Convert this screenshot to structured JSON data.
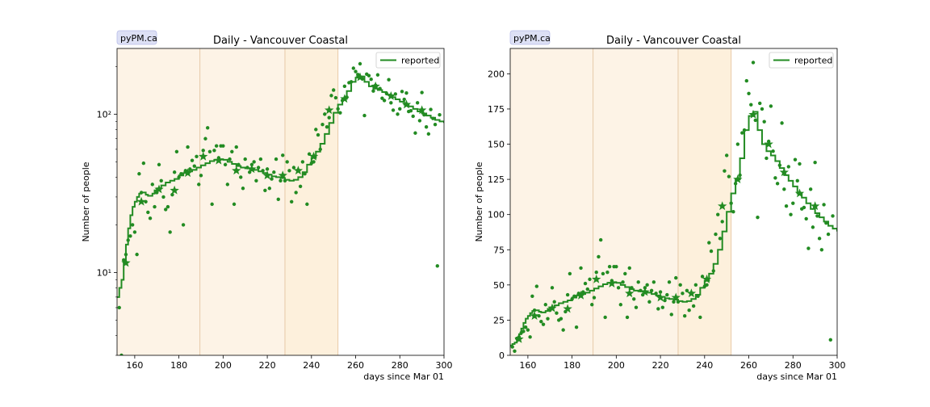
{
  "colors": {
    "series": "#228b22",
    "band_light": "#fdf3e6",
    "band_dark": "#fdf0dc",
    "band_edge": "#e6c9a8",
    "badge_bg": "#dde0f5",
    "badge_border": "#b8bce8"
  },
  "chart_data": [
    {
      "type": "scatter",
      "id": "log",
      "badge": "pyPM.ca",
      "title": "Daily - Vancouver Coastal",
      "xlabel": "days since Mar 01",
      "ylabel": "Number of people",
      "yscale": "log",
      "xlim": [
        152,
        300
      ],
      "ylim": [
        3,
        260
      ],
      "xticks": [
        160,
        180,
        200,
        220,
        240,
        260,
        280,
        300
      ],
      "yticks": [
        10,
        100
      ],
      "ytick_labels": [
        "10¹",
        "10²"
      ],
      "legend": {
        "label": "reported",
        "position": "top-right"
      },
      "bands": [
        [
          152,
          189.5
        ],
        [
          189.5,
          228
        ],
        [
          228,
          252
        ]
      ],
      "model_points": [
        [
          152,
          7
        ],
        [
          153,
          8
        ],
        [
          154,
          9
        ],
        [
          155,
          11.5
        ],
        [
          156,
          15
        ],
        [
          157,
          19
        ],
        [
          158,
          23
        ],
        [
          159,
          26
        ],
        [
          160,
          28
        ],
        [
          161,
          30
        ],
        [
          162,
          31.5
        ],
        [
          163,
          32
        ],
        [
          164,
          32
        ],
        [
          165,
          31
        ],
        [
          166,
          30.5
        ],
        [
          167,
          30.5
        ],
        [
          168,
          31.5
        ],
        [
          169,
          33
        ],
        [
          170,
          34
        ],
        [
          172,
          35.5
        ],
        [
          174,
          37
        ],
        [
          176,
          38
        ],
        [
          178,
          39
        ],
        [
          180,
          41
        ],
        [
          182,
          42.5
        ],
        [
          184,
          43.5
        ],
        [
          186,
          44.5
        ],
        [
          188,
          46
        ],
        [
          190,
          47.5
        ],
        [
          192,
          49
        ],
        [
          194,
          50.5
        ],
        [
          196,
          51.5
        ],
        [
          198,
          52
        ],
        [
          200,
          51.5
        ],
        [
          202,
          50
        ],
        [
          204,
          48.5
        ],
        [
          206,
          47
        ],
        [
          208,
          46
        ],
        [
          210,
          45.5
        ],
        [
          212,
          45
        ],
        [
          214,
          44.5
        ],
        [
          216,
          43.5
        ],
        [
          218,
          42.5
        ],
        [
          220,
          41.5
        ],
        [
          222,
          40.5
        ],
        [
          224,
          40
        ],
        [
          226,
          39.5
        ],
        [
          228,
          38.5
        ],
        [
          230,
          38
        ],
        [
          232,
          38.5
        ],
        [
          234,
          40
        ],
        [
          236,
          43
        ],
        [
          238,
          48
        ],
        [
          240,
          53
        ],
        [
          242,
          58
        ],
        [
          244,
          65
        ],
        [
          246,
          75
        ],
        [
          248,
          88
        ],
        [
          250,
          102
        ],
        [
          252,
          115
        ],
        [
          254,
          125
        ],
        [
          256,
          140
        ],
        [
          258,
          160
        ],
        [
          260,
          170
        ],
        [
          262,
          173
        ],
        [
          264,
          160
        ],
        [
          266,
          150
        ],
        [
          268,
          145
        ],
        [
          270,
          142
        ],
        [
          272,
          138
        ],
        [
          274,
          133
        ],
        [
          276,
          128
        ],
        [
          278,
          124
        ],
        [
          280,
          120
        ],
        [
          282,
          115
        ],
        [
          284,
          112
        ],
        [
          286,
          108
        ],
        [
          288,
          104
        ],
        [
          290,
          101
        ],
        [
          292,
          98
        ],
        [
          294,
          95
        ],
        [
          296,
          92
        ],
        [
          298,
          90
        ],
        [
          300,
          88
        ]
      ],
      "stars": [
        [
          156,
          11.5
        ],
        [
          163,
          28
        ],
        [
          171,
          33.5
        ],
        [
          178,
          33
        ],
        [
          184,
          42.5
        ],
        [
          191,
          54
        ],
        [
          198,
          51
        ],
        [
          206,
          44
        ],
        [
          213,
          45
        ],
        [
          220,
          41
        ],
        [
          227,
          41
        ],
        [
          234,
          44
        ],
        [
          241,
          54
        ],
        [
          248,
          106
        ],
        [
          255,
          125
        ],
        [
          262,
          171
        ],
        [
          269,
          150
        ],
        [
          276,
          130
        ],
        [
          283,
          115
        ],
        [
          290,
          106
        ]
      ],
      "dots": [
        [
          153,
          6
        ],
        [
          154,
          3
        ],
        [
          155,
          12
        ],
        [
          156,
          13
        ],
        [
          157,
          16
        ],
        [
          158,
          17
        ],
        [
          159,
          20
        ],
        [
          160,
          18
        ],
        [
          161,
          13
        ],
        [
          162,
          42
        ],
        [
          163,
          32
        ],
        [
          164,
          49
        ],
        [
          165,
          28
        ],
        [
          166,
          24
        ],
        [
          167,
          22
        ],
        [
          168,
          36
        ],
        [
          169,
          26
        ],
        [
          170,
          32
        ],
        [
          171,
          48
        ],
        [
          172,
          38
        ],
        [
          173,
          30
        ],
        [
          174,
          25
        ],
        [
          175,
          26
        ],
        [
          176,
          18
        ],
        [
          177,
          31
        ],
        [
          178,
          43
        ],
        [
          179,
          58
        ],
        [
          180,
          40
        ],
        [
          181,
          42
        ],
        [
          182,
          20
        ],
        [
          183,
          44
        ],
        [
          184,
          62
        ],
        [
          185,
          45
        ],
        [
          186,
          51
        ],
        [
          187,
          47
        ],
        [
          188,
          54
        ],
        [
          189,
          36
        ],
        [
          190,
          41
        ],
        [
          191,
          59
        ],
        [
          192,
          70
        ],
        [
          193,
          82
        ],
        [
          194,
          58
        ],
        [
          195,
          27
        ],
        [
          196,
          59
        ],
        [
          197,
          63
        ],
        [
          198,
          53
        ],
        [
          199,
          63
        ],
        [
          200,
          63
        ],
        [
          201,
          48
        ],
        [
          202,
          36
        ],
        [
          203,
          52
        ],
        [
          204,
          58
        ],
        [
          205,
          27
        ],
        [
          206,
          62
        ],
        [
          207,
          48
        ],
        [
          208,
          40
        ],
        [
          209,
          34
        ],
        [
          210,
          52
        ],
        [
          211,
          46
        ],
        [
          212,
          43
        ],
        [
          213,
          48
        ],
        [
          214,
          50
        ],
        [
          215,
          38
        ],
        [
          216,
          46
        ],
        [
          217,
          52
        ],
        [
          218,
          44
        ],
        [
          219,
          33
        ],
        [
          220,
          45
        ],
        [
          221,
          34
        ],
        [
          222,
          39
        ],
        [
          223,
          43
        ],
        [
          224,
          52
        ],
        [
          225,
          29
        ],
        [
          226,
          38
        ],
        [
          227,
          55
        ],
        [
          228,
          38
        ],
        [
          229,
          50
        ],
        [
          230,
          44
        ],
        [
          231,
          28
        ],
        [
          232,
          46
        ],
        [
          233,
          32
        ],
        [
          234,
          44
        ],
        [
          235,
          35
        ],
        [
          236,
          50
        ],
        [
          237,
          42
        ],
        [
          238,
          27
        ],
        [
          239,
          56
        ],
        [
          240,
          49
        ],
        [
          241,
          50
        ],
        [
          242,
          80
        ],
        [
          243,
          74
        ],
        [
          244,
          60
        ],
        [
          245,
          86
        ],
        [
          246,
          100
        ],
        [
          247,
          83
        ],
        [
          248,
          95
        ],
        [
          249,
          131
        ],
        [
          250,
          142
        ],
        [
          251,
          127
        ],
        [
          252,
          108
        ],
        [
          253,
          102
        ],
        [
          254,
          122
        ],
        [
          255,
          150
        ],
        [
          256,
          128
        ],
        [
          257,
          158
        ],
        [
          258,
          160
        ],
        [
          259,
          195
        ],
        [
          260,
          186
        ],
        [
          261,
          178
        ],
        [
          262,
          208
        ],
        [
          263,
          167
        ],
        [
          264,
          98
        ],
        [
          265,
          179
        ],
        [
          266,
          175
        ],
        [
          267,
          166
        ],
        [
          268,
          140
        ],
        [
          269,
          152
        ],
        [
          270,
          177
        ],
        [
          271,
          145
        ],
        [
          272,
          126
        ],
        [
          273,
          122
        ],
        [
          274,
          135
        ],
        [
          275,
          165
        ],
        [
          276,
          118
        ],
        [
          277,
          106
        ],
        [
          278,
          134
        ],
        [
          279,
          100
        ],
        [
          280,
          108
        ],
        [
          281,
          139
        ],
        [
          282,
          124
        ],
        [
          283,
          136
        ],
        [
          284,
          104
        ],
        [
          285,
          105
        ],
        [
          286,
          97
        ],
        [
          287,
          76
        ],
        [
          288,
          118
        ],
        [
          289,
          91
        ],
        [
          290,
          137
        ],
        [
          291,
          99
        ],
        [
          292,
          83
        ],
        [
          293,
          75
        ],
        [
          294,
          107
        ],
        [
          295,
          94
        ],
        [
          296,
          86
        ],
        [
          297,
          11
        ],
        [
          298,
          99
        ]
      ]
    },
    {
      "type": "scatter",
      "id": "linear",
      "badge": "pyPM.ca",
      "title": "Daily - Vancouver Coastal",
      "xlabel": "days since Mar 01",
      "ylabel": "Number of people",
      "yscale": "linear",
      "xlim": [
        152,
        300
      ],
      "ylim": [
        0,
        218
      ],
      "xticks": [
        160,
        180,
        200,
        220,
        240,
        260,
        280,
        300
      ],
      "yticks": [
        0,
        25,
        50,
        75,
        100,
        125,
        150,
        175,
        200
      ],
      "ytick_labels": [
        "0",
        "25",
        "50",
        "75",
        "100",
        "125",
        "150",
        "175",
        "200"
      ],
      "legend": {
        "label": "reported",
        "position": "top-right"
      },
      "bands": [
        [
          152,
          189.5
        ],
        [
          189.5,
          228
        ],
        [
          228,
          252
        ]
      ],
      "model_points": "same-as-log",
      "stars": "same-as-log",
      "dots": "same-as-log"
    }
  ]
}
